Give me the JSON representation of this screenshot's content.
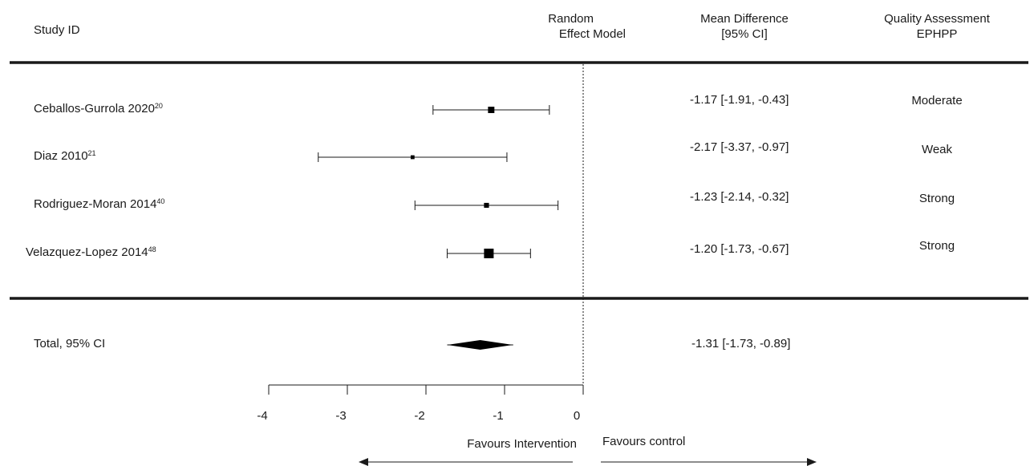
{
  "header": {
    "study_id": "Study ID",
    "model_line1": "Random",
    "model_line2": "Effect Model",
    "md_line1": "Mean Difference",
    "md_line2": "[95% CI]",
    "qa_line1": "Quality Assessment",
    "qa_line2": "EPHPP"
  },
  "chart_data": {
    "type": "forest",
    "xlim": [
      -4,
      0
    ],
    "x_ticks": [
      -4,
      -3,
      -2,
      -1,
      0
    ],
    "reference_line": 0,
    "studies": [
      {
        "name": "Ceballos-Gurrola 2020",
        "ref": "20",
        "mean": -1.17,
        "lower": -1.91,
        "upper": -0.43,
        "ci_text": "-1.17 [-1.91, -0.43]",
        "quality": "Moderate",
        "weight": 0.55
      },
      {
        "name": "Diaz 2010",
        "ref": "21",
        "mean": -2.17,
        "lower": -3.37,
        "upper": -0.97,
        "ci_text": "-2.17 [-3.37, -0.97]",
        "quality": "Weak",
        "weight": 0.2
      },
      {
        "name": "Rodriguez-Moran 2014",
        "ref": "40",
        "mean": -1.23,
        "lower": -2.14,
        "upper": -0.32,
        "ci_text": "-1.23 [-2.14, -0.32]",
        "quality": "Strong",
        "weight": 0.35
      },
      {
        "name": "Velazquez-Lopez 2014",
        "ref": "48",
        "mean": -1.2,
        "lower": -1.73,
        "upper": -0.67,
        "ci_text": "-1.20 [-1.73, -0.67]",
        "quality": "Strong",
        "weight": 1.0
      }
    ],
    "total": {
      "label": "Total, 95% CI",
      "mean": -1.31,
      "lower": -1.73,
      "upper": -0.89,
      "ci_text": "-1.31 [-1.73, -0.89]"
    },
    "favours_left": "Favours Intervention",
    "favours_right": "Favours control"
  }
}
